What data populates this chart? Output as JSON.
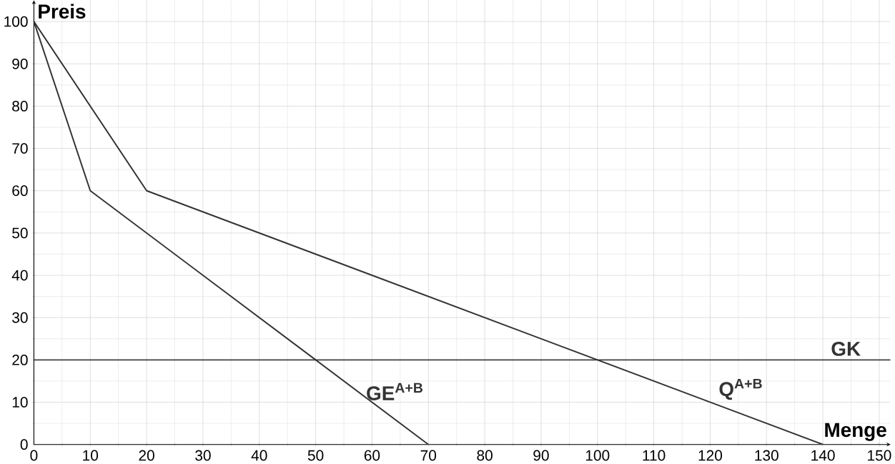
{
  "chart_data": {
    "type": "line",
    "xlabel": "Menge",
    "ylabel": "Preis",
    "xlim": [
      0,
      152
    ],
    "ylim": [
      0,
      105
    ],
    "xticks": [
      0,
      10,
      20,
      30,
      40,
      50,
      60,
      70,
      80,
      90,
      100,
      110,
      120,
      130,
      140,
      150
    ],
    "yticks": [
      0,
      10,
      20,
      30,
      40,
      50,
      60,
      70,
      80,
      90,
      100
    ],
    "grid": true,
    "marker": "none",
    "line_style": "solid",
    "series": [
      {
        "name": "GE$^{A+B}$",
        "color": "#333333",
        "x": [
          0,
          10,
          50,
          70
        ],
        "values": [
          100,
          60,
          20,
          0
        ]
      },
      {
        "name": "Q$^{A+B}$",
        "color": "#333333",
        "x": [
          0,
          20,
          100,
          140
        ],
        "values": [
          100,
          60,
          20,
          0
        ]
      }
    ],
    "ref_lines": [
      {
        "axis": "y",
        "value": 20,
        "label": "GK",
        "color": "#333333"
      }
    ]
  }
}
